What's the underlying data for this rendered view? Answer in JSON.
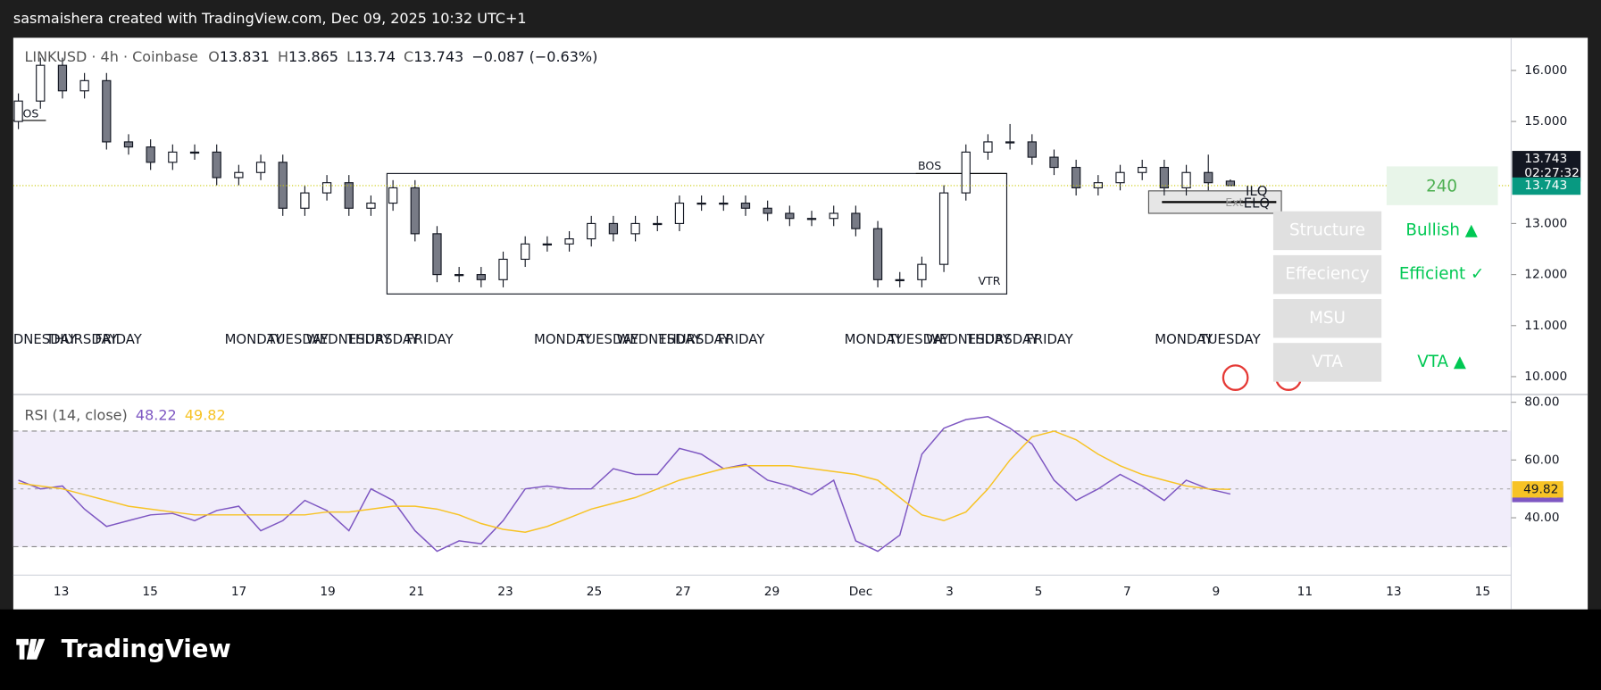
{
  "watermark": "sasmaishera created with TradingView.com, Dec 09, 2025 10:32 UTC+1",
  "brand": "TradingView",
  "chart_data": {
    "type": "candlestick",
    "symbol": "LINKUSD · 4h · Coinbase",
    "ohlc_prefixes": [
      "O",
      "H",
      "L",
      "C"
    ],
    "change": "−0.087 (−0.63%)",
    "countdown": "02:27:32",
    "open": [
      15.0,
      15.4,
      16.1,
      15.6,
      15.8,
      14.6,
      14.5,
      14.2,
      14.4,
      14.4,
      13.9,
      14.0,
      14.2,
      13.3,
      13.6,
      13.8,
      13.3,
      13.4,
      13.7,
      12.8,
      12.0,
      12.0,
      11.9,
      12.3,
      12.6,
      12.6,
      12.7,
      13.0,
      12.8,
      13.0,
      13.0,
      13.4,
      13.4,
      13.4,
      13.3,
      13.2,
      13.1,
      13.1,
      13.2,
      12.9,
      11.9,
      11.9,
      12.2,
      13.6,
      14.4,
      14.6,
      14.6,
      14.3,
      14.1,
      13.7,
      13.8,
      14.0,
      14.1,
      13.7,
      14.0,
      13.831
    ],
    "high": [
      15.55,
      16.25,
      16.25,
      15.95,
      15.95,
      14.75,
      14.65,
      14.55,
      14.55,
      14.55,
      14.15,
      14.35,
      14.35,
      13.75,
      13.95,
      13.95,
      13.55,
      13.85,
      13.85,
      12.95,
      12.15,
      12.15,
      12.45,
      12.75,
      12.75,
      12.85,
      13.15,
      13.15,
      13.15,
      13.15,
      13.55,
      13.55,
      13.55,
      13.55,
      13.45,
      13.35,
      13.25,
      13.35,
      13.35,
      13.05,
      12.05,
      12.35,
      13.75,
      14.55,
      14.75,
      14.95,
      14.75,
      14.45,
      14.25,
      13.95,
      14.15,
      14.25,
      14.25,
      14.15,
      14.35,
      13.865
    ],
    "low": [
      14.85,
      15.25,
      15.45,
      15.45,
      14.45,
      14.35,
      14.05,
      14.05,
      14.25,
      13.75,
      13.75,
      13.85,
      13.15,
      13.15,
      13.45,
      13.15,
      13.15,
      13.25,
      12.65,
      11.85,
      11.85,
      11.75,
      11.75,
      12.15,
      12.45,
      12.45,
      12.55,
      12.65,
      12.65,
      12.85,
      12.85,
      13.25,
      13.25,
      13.15,
      13.05,
      12.95,
      12.95,
      12.95,
      12.75,
      11.75,
      11.75,
      11.75,
      12.05,
      13.45,
      14.25,
      14.45,
      14.15,
      13.95,
      13.55,
      13.55,
      13.65,
      13.85,
      13.55,
      13.55,
      13.65,
      13.74
    ],
    "close": [
      15.4,
      16.1,
      15.6,
      15.8,
      14.6,
      14.5,
      14.2,
      14.4,
      14.4,
      13.9,
      14.0,
      14.2,
      13.3,
      13.6,
      13.8,
      13.3,
      13.4,
      13.7,
      12.8,
      12.0,
      12.0,
      11.9,
      12.3,
      12.6,
      12.6,
      12.7,
      13.0,
      12.8,
      13.0,
      13.0,
      13.4,
      13.4,
      13.4,
      13.3,
      13.2,
      13.1,
      13.1,
      13.2,
      12.9,
      11.9,
      11.9,
      12.2,
      13.6,
      14.4,
      14.6,
      14.6,
      14.3,
      14.1,
      13.7,
      13.8,
      14.0,
      14.1,
      13.7,
      14.0,
      13.8,
      13.743
    ],
    "ylim": [
      9.66,
      16.64
    ],
    "yticks": [
      {
        "value": 10,
        "label": "10.000"
      },
      {
        "value": 11,
        "label": "11.000"
      },
      {
        "value": 12,
        "label": "12.000"
      },
      {
        "value": 13,
        "label": "13.000"
      },
      {
        "value": 15,
        "label": "15.000"
      },
      {
        "value": 16,
        "label": "16.000"
      }
    ],
    "xtick_labels": [
      "13",
      "15",
      "17",
      "19",
      "21",
      "23",
      "25",
      "27",
      "29",
      "Dec",
      "3",
      "5",
      "7",
      "9",
      "11",
      "13",
      "15"
    ],
    "weekdays": [
      "DNESDAY",
      "THURSDAY",
      "FRIDAY",
      "MONDAY",
      "TUESDAY",
      "WEDNESDAY",
      "THURSDAY",
      "FRIDAY",
      "MONDAY",
      "TUESDAY",
      "WEDNESDAY",
      "THURSDAY",
      "FRIDAY",
      "MONDAY",
      "TUESDAY",
      "WEDNESDAY",
      "THURSDAY",
      "FRIDAY",
      "MONDAY",
      "TUESDAY"
    ],
    "annotations": [
      "BOS",
      "BOS",
      "VTR",
      "ILQ",
      "ELQ",
      "Ext"
    ],
    "rsi": {
      "label": "RSI (14, close)",
      "ylim": [
        20.3,
        82.5
      ],
      "yticks": [
        {
          "value": 40,
          "label": "40.00"
        },
        {
          "value": 60,
          "label": "60.00"
        },
        {
          "value": 80,
          "label": "80.00"
        }
      ],
      "bands": [
        70,
        30
      ],
      "series": [
        {
          "color": "#7e57c2",
          "values": [
            53,
            50,
            51,
            43,
            37,
            39,
            41,
            41.5,
            39,
            42.5,
            44,
            35.5,
            39,
            46,
            42.5,
            35.5,
            50,
            46,
            35.5,
            28.4,
            32,
            31,
            39,
            50,
            51,
            50,
            50,
            57,
            55,
            55,
            64,
            62,
            57,
            58.5,
            53,
            51,
            48,
            53,
            32,
            28.4,
            34,
            62,
            71,
            74,
            75,
            71,
            65.5,
            53,
            46,
            50,
            55,
            51,
            46,
            53,
            50,
            48.22
          ]
        },
        {
          "color": "#f7c325",
          "values": [
            52,
            51,
            50,
            48,
            46,
            44,
            43,
            42,
            41,
            41,
            41,
            41,
            41,
            41,
            42,
            42,
            43,
            44,
            44,
            43,
            41,
            38,
            36,
            35,
            37,
            40,
            43,
            45,
            47,
            50,
            53,
            55,
            57,
            58,
            58,
            58,
            57,
            56,
            55,
            53,
            47,
            41,
            39,
            42,
            50,
            60,
            68,
            70,
            67,
            62,
            58,
            55,
            53,
            51,
            50,
            49.82
          ]
        }
      ]
    }
  },
  "panel": {
    "header": "240",
    "rows": [
      {
        "label": "Structure",
        "value": "Bullish ▲"
      },
      {
        "label": "Effeciency",
        "value": "Efficient ✓"
      },
      {
        "label": "MSU"
      },
      {
        "label": "VTA",
        "value": "VTA ▲"
      }
    ]
  }
}
